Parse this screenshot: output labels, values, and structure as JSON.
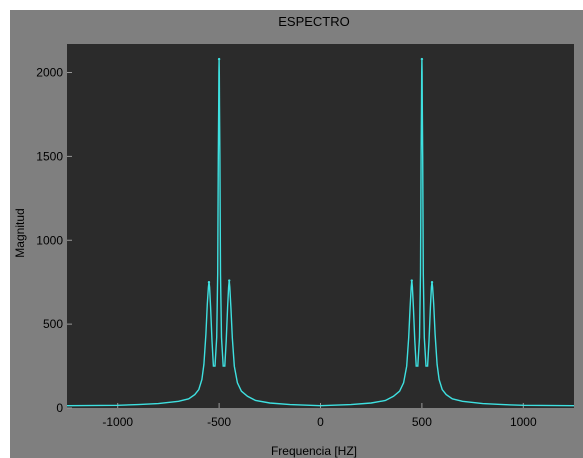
{
  "chart_data": {
    "type": "line",
    "title": "ESPECTRO",
    "xlabel": "Frequencia [HZ]",
    "ylabel": "Magnitud",
    "xlim": [
      -1250,
      1250
    ],
    "ylim": [
      0,
      2170
    ],
    "xticks": [
      -1000,
      -500,
      0,
      500,
      1000
    ],
    "yticks": [
      0,
      500,
      1000,
      1500,
      2000
    ],
    "grid": false,
    "colors": {
      "figure_bg": "#7f7f7f",
      "axes_bg": "#2b2b2b",
      "line": "#3ee0e0",
      "text": "#000000"
    },
    "series": [
      {
        "peaks": [
          {
            "x": -550,
            "y": 750
          },
          {
            "x": -500,
            "y": 2080
          },
          {
            "x": -450,
            "y": 760
          },
          {
            "x": 450,
            "y": 760
          },
          {
            "x": 500,
            "y": 2080
          },
          {
            "x": 550,
            "y": 750
          }
        ],
        "x": [
          -1250,
          -1000,
          -900,
          -800,
          -700,
          -650,
          -620,
          -600,
          -585,
          -575,
          -565,
          -558,
          -553,
          -550,
          -547,
          -542,
          -535,
          -528,
          -520,
          -512,
          -507,
          -504,
          -502,
          -501,
          -500,
          -499,
          -498,
          -496,
          -493,
          -488,
          -480,
          -472,
          -465,
          -458,
          -453,
          -450,
          -447,
          -442,
          -435,
          -425,
          -410,
          -390,
          -360,
          -320,
          -250,
          -150,
          0,
          150,
          250,
          320,
          360,
          390,
          410,
          425,
          435,
          442,
          447,
          450,
          453,
          458,
          465,
          472,
          480,
          488,
          493,
          496,
          498,
          499,
          500,
          501,
          502,
          504,
          507,
          512,
          520,
          528,
          535,
          542,
          547,
          550,
          553,
          558,
          565,
          575,
          585,
          600,
          620,
          650,
          700,
          800,
          900,
          1000,
          1250
        ],
        "y": [
          14,
          16,
          20,
          26,
          40,
          55,
          80,
          110,
          170,
          260,
          440,
          620,
          720,
          750,
          720,
          600,
          400,
          250,
          250,
          420,
          800,
          1500,
          1800,
          2000,
          2080,
          2000,
          1800,
          1500,
          800,
          420,
          250,
          250,
          400,
          600,
          720,
          760,
          720,
          600,
          420,
          250,
          150,
          100,
          70,
          45,
          30,
          20,
          14,
          20,
          30,
          45,
          70,
          100,
          150,
          250,
          420,
          600,
          720,
          760,
          720,
          600,
          400,
          250,
          250,
          420,
          800,
          1500,
          1800,
          2000,
          2080,
          2000,
          1800,
          1500,
          800,
          420,
          250,
          250,
          400,
          600,
          720,
          750,
          720,
          620,
          440,
          260,
          170,
          110,
          80,
          55,
          40,
          26,
          20,
          16,
          14
        ]
      }
    ]
  }
}
